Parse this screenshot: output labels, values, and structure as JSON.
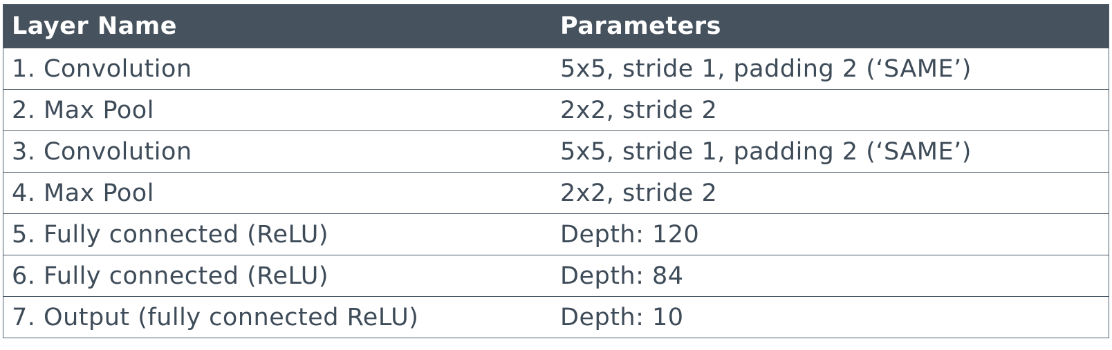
{
  "table": {
    "headers": [
      "Layer Name",
      "Parameters"
    ],
    "rows": [
      {
        "layer": "1. Convolution",
        "params": "5x5, stride 1, padding 2 (‘SAME’)"
      },
      {
        "layer": "2. Max Pool",
        "params": "2x2, stride 2"
      },
      {
        "layer": "3. Convolution",
        "params": "5x5, stride 1, padding 2 (‘SAME’)"
      },
      {
        "layer": "4. Max Pool",
        "params": "2x2, stride 2"
      },
      {
        "layer": "5. Fully connected (ReLU)",
        "params": "Depth: 120"
      },
      {
        "layer": "6. Fully connected (ReLU)",
        "params": "Depth: 84"
      },
      {
        "layer": "7. Output (fully connected ReLU)",
        "params": "Depth: 10"
      }
    ]
  },
  "colors": {
    "header_background": "#46535f",
    "header_text": "#ffffff",
    "body_text": "#3e4b58",
    "border": "#4a5a68"
  }
}
